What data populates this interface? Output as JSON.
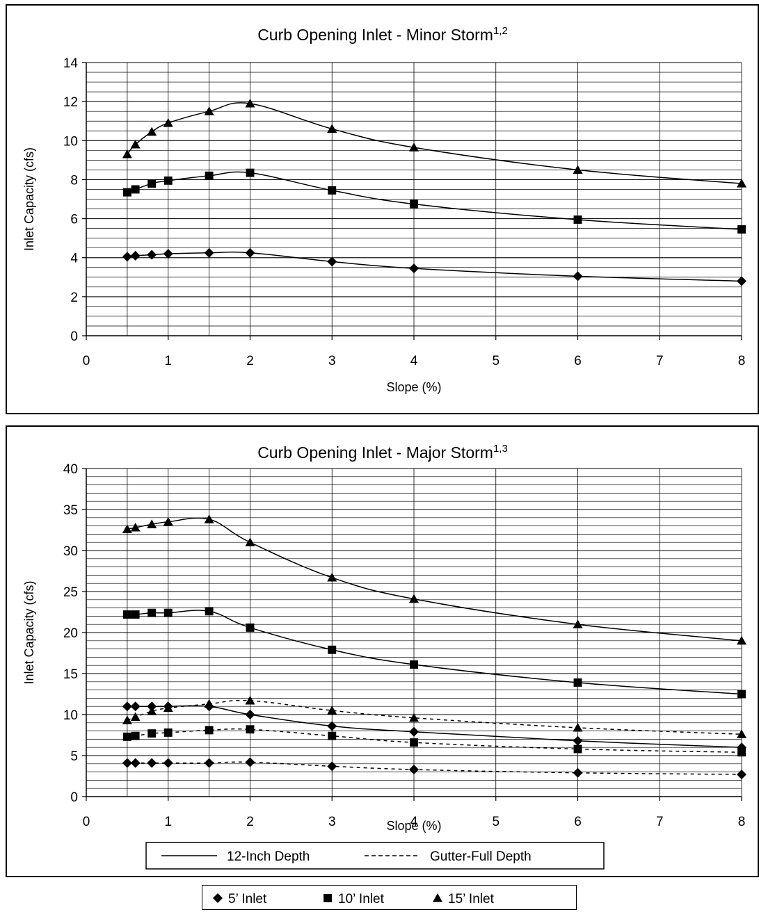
{
  "chart_data": [
    {
      "type": "line",
      "title": "Curb Opening Inlet - Minor Storm",
      "title_sup": "1,2",
      "xlabel": "Slope (%)",
      "ylabel": "Inlet Capacity (cfs)",
      "xlim": [
        0,
        8
      ],
      "ylim": [
        0,
        14
      ],
      "xticks": [
        0,
        1,
        2,
        3,
        4,
        5,
        6,
        7,
        8
      ],
      "yticks": [
        0,
        2,
        4,
        6,
        8,
        10,
        12,
        14
      ],
      "grid": true,
      "minor_y_step": 0.5,
      "x": [
        0.5,
        0.6,
        0.8,
        1,
        1.5,
        2,
        3,
        4,
        6,
        8
      ],
      "series": [
        {
          "name": "5' Inlet",
          "marker": "diamond",
          "style": "solid",
          "values": [
            4.05,
            4.1,
            4.15,
            4.2,
            4.25,
            4.25,
            3.8,
            3.45,
            3.05,
            2.8
          ]
        },
        {
          "name": "10' Inlet",
          "marker": "square",
          "style": "solid",
          "values": [
            7.35,
            7.5,
            7.8,
            7.95,
            8.2,
            8.35,
            7.45,
            6.75,
            5.95,
            5.45
          ]
        },
        {
          "name": "15' Inlet",
          "marker": "triangle",
          "style": "solid",
          "values": [
            9.3,
            9.8,
            10.45,
            10.9,
            11.5,
            11.9,
            10.6,
            9.65,
            8.5,
            7.8
          ]
        }
      ]
    },
    {
      "type": "line",
      "title": "Curb Opening Inlet - Major Storm",
      "title_sup": "1,3",
      "xlabel": "Slope (%)",
      "ylabel": "Inlet Capacity (cfs)",
      "xlim": [
        0,
        8
      ],
      "ylim": [
        0,
        40
      ],
      "xticks": [
        0,
        1,
        2,
        3,
        4,
        5,
        6,
        7,
        8
      ],
      "yticks": [
        0,
        5,
        10,
        15,
        20,
        25,
        30,
        35,
        40
      ],
      "grid": true,
      "minor_y_step": 1,
      "x": [
        0.5,
        0.6,
        0.8,
        1,
        1.5,
        2,
        3,
        4,
        6,
        8
      ],
      "series": [
        {
          "name": "5' Inlet",
          "group": "12-Inch Depth",
          "marker": "diamond",
          "style": "solid",
          "values": [
            11.0,
            11.0,
            11.0,
            11.0,
            11.0,
            10.0,
            8.6,
            7.9,
            6.8,
            6.0
          ]
        },
        {
          "name": "10' Inlet",
          "group": "12-Inch Depth",
          "marker": "square",
          "style": "solid",
          "values": [
            22.2,
            22.2,
            22.4,
            22.4,
            22.6,
            20.6,
            17.9,
            16.1,
            13.9,
            12.5
          ]
        },
        {
          "name": "15' Inlet",
          "group": "12-Inch Depth",
          "marker": "triangle",
          "style": "solid",
          "values": [
            32.6,
            32.8,
            33.2,
            33.5,
            33.8,
            31.0,
            26.7,
            24.1,
            21.0,
            19.0
          ]
        },
        {
          "name": "5' Inlet",
          "group": "Gutter-Full Depth",
          "marker": "diamond",
          "style": "dashed",
          "values": [
            4.1,
            4.1,
            4.1,
            4.1,
            4.1,
            4.2,
            3.7,
            3.3,
            2.9,
            2.7
          ]
        },
        {
          "name": "10' Inlet",
          "group": "Gutter-Full Depth",
          "marker": "square",
          "style": "dashed",
          "values": [
            7.3,
            7.4,
            7.7,
            7.8,
            8.1,
            8.2,
            7.4,
            6.6,
            5.8,
            5.4
          ]
        },
        {
          "name": "15' Inlet",
          "group": "Gutter-Full Depth",
          "marker": "triangle",
          "style": "dashed",
          "values": [
            9.3,
            9.7,
            10.4,
            10.8,
            11.3,
            11.7,
            10.5,
            9.6,
            8.4,
            7.6
          ]
        }
      ],
      "legend": {
        "placement": "bottom",
        "entries": [
          {
            "label": "12-Inch Depth",
            "style": "solid"
          },
          {
            "label": "Gutter-Full Depth",
            "style": "dashed"
          }
        ]
      }
    }
  ],
  "marker_legend": {
    "placement": "bottom",
    "entries": [
      {
        "label": "5’ Inlet",
        "marker": "diamond"
      },
      {
        "label": "10’ Inlet",
        "marker": "square"
      },
      {
        "label": "15’ Inlet",
        "marker": "triangle"
      }
    ]
  }
}
